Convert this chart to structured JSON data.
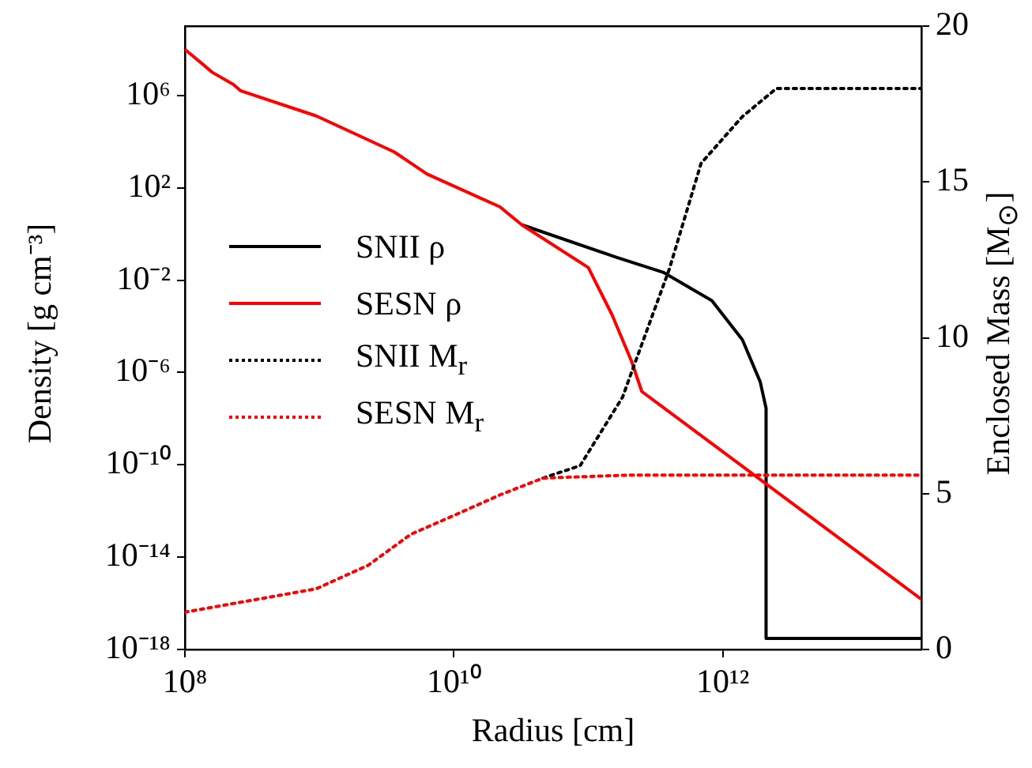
{
  "chart_data": {
    "type": "line",
    "xlabel": "Radius [cm]",
    "ylabel": "Density [g cm⁻³]",
    "y2label": "Enclosed Mass [M$_{⊙}$]",
    "log": "xy",
    "grid": false,
    "legend": "center left",
    "marker": "none",
    "xlim": [
      100000000.0,
      30000000000000.0
    ],
    "xticks": [
      {
        "value": 100000000.0,
        "label": "10⁸"
      },
      {
        "value": 10000000000.0,
        "label": "10¹⁰"
      },
      {
        "value": 1000000000000.0,
        "label": "10¹²"
      }
    ],
    "ylim": [
      1e-18,
      1000000000.0
    ],
    "yticks": [
      {
        "value": 1e-18,
        "label": "10⁻¹⁸"
      },
      {
        "value": 1e-14,
        "label": "10⁻¹⁴"
      },
      {
        "value": 1e-10,
        "label": "10⁻¹⁰"
      },
      {
        "value": 1e-06,
        "label": "10⁻⁶"
      },
      {
        "value": 0.01,
        "label": "10⁻²"
      },
      {
        "value": 100,
        "label": "10²"
      },
      {
        "value": 1000000.0,
        "label": "10⁶"
      }
    ],
    "y2lim": [
      0,
      20
    ],
    "y2ticks": [
      0,
      5,
      10,
      15,
      20
    ],
    "series": [
      {
        "name": "SNII ρ",
        "color": "#000000",
        "line_style": "solid",
        "x": [
          32000000000.0,
          160000000000.0,
          360000000000.0,
          830000000000.0,
          1400000000000.0,
          1900000000000.0,
          2100000000000.0,
          2100000000000.0,
          30000000000000.0
        ],
        "values": [
          2.5,
          0.1,
          0.022,
          0.0013,
          2.6e-05,
          3.9e-07,
          2.8e-08,
          3e-18,
          3e-18
        ]
      },
      {
        "name": "SESN ρ",
        "color": "#ff0000",
        "line_style": "solid",
        "x": [
          100000000.0,
          160000000.0,
          230000000.0,
          260000000.0,
          950000000.0,
          3600000000.0,
          6300000000.0,
          22000000000.0,
          32000000000.0,
          100000000000.0,
          150000000000.0,
          210000000000.0,
          250000000000.0,
          30000000000000.0
        ],
        "values": [
          100000000.0,
          10000000.0,
          3000000.0,
          1600000.0,
          130000.0,
          3600,
          400,
          15,
          2.5,
          0.035,
          0.00032,
          3e-06,
          1.5e-07,
          1.5e-16
        ]
      },
      {
        "name": "SNII M$_{r}$",
        "color": "#000000",
        "line_style": "dotted",
        "axis": "y2",
        "x": [
          46000000000.0,
          87000000000.0,
          180000000000.0,
          210000000000.0,
          400000000000.0,
          690000000000.0,
          1400000000000.0,
          2500000000000.0,
          30000000000000.0
        ],
        "values": [
          5.5,
          5.9,
          8.1,
          8.9,
          12.2,
          15.6,
          17.1,
          18,
          18
        ]
      },
      {
        "name": "SESN M$_{r}$",
        "color": "#ff0000",
        "line_style": "dotted",
        "axis": "y2",
        "x": [
          100000000.0,
          390000000.0,
          950000000.0,
          2300000000.0,
          4800000000.0,
          10000000000.0,
          22000000000.0,
          46000000000.0,
          210000000000.0,
          30000000000000.0
        ],
        "values": [
          1.2,
          1.65,
          1.95,
          2.7,
          3.7,
          4.3,
          4.96,
          5.5,
          5.6,
          5.6
        ]
      }
    ]
  }
}
